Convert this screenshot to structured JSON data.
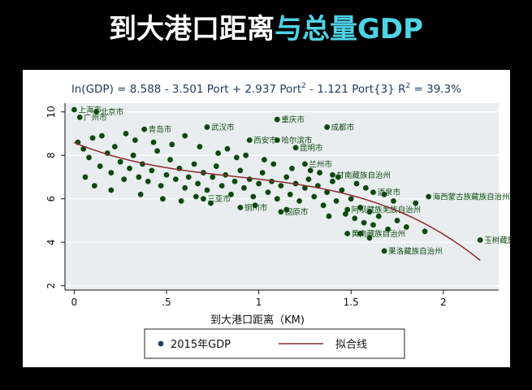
{
  "slide": {
    "title_part1": "到大港口距离",
    "title_part2": "与总量GDP",
    "accent_color": "#4fd3e6"
  },
  "chart_data": {
    "type": "scatter",
    "title_parts": {
      "lead": "ln(GDP) = 8.588 - 3.501 Port + 2.937 Port",
      "sup1": "2",
      "mid": " - 1.121 Port{3}  R",
      "sup2": "2",
      "tail": " = 39.3%"
    },
    "xlabel": "到大港口距离（KM)",
    "ylabel": "",
    "xlim": [
      -0.05,
      2.3
    ],
    "ylim": [
      1.8,
      10.4
    ],
    "x_ticks": [
      0,
      0.5,
      1,
      1.5,
      2
    ],
    "x_tick_labels": [
      "0",
      ".5",
      "1",
      "1.5",
      "2"
    ],
    "y_ticks": [
      2,
      4,
      6,
      8,
      10
    ],
    "y_tick_labels": [
      "2",
      "4",
      "6",
      "8",
      "10"
    ],
    "grid": true,
    "legend_position": "bottom",
    "colors": {
      "plot_bg": "#e9edf0",
      "outer_bg": "#ffffff",
      "marker": "#0c4a0c",
      "label": "#0d4d0d",
      "fit_line": "#8e2a2a",
      "grid": "#ffffff",
      "title": "#1e3a5c",
      "legend_marker": "#1b3f66"
    },
    "series": [
      {
        "name": "2015年GDP",
        "kind": "scatter",
        "points": [
          {
            "x": 0.0,
            "y": 10.1,
            "label": "上海市"
          },
          {
            "x": 0.12,
            "y": 10.0,
            "label": "北京市"
          },
          {
            "x": 0.03,
            "y": 9.75,
            "label": "广州市"
          },
          {
            "x": 1.1,
            "y": 9.65,
            "label": "重庆市"
          },
          {
            "x": 1.37,
            "y": 9.3,
            "label": "成都市"
          },
          {
            "x": 0.72,
            "y": 9.3,
            "label": "武汉市"
          },
          {
            "x": 0.38,
            "y": 9.2,
            "label": "青岛市"
          },
          {
            "x": 0.95,
            "y": 8.7,
            "label": "西安市"
          },
          {
            "x": 1.1,
            "y": 8.7,
            "label": "哈尔滨市"
          },
          {
            "x": 1.2,
            "y": 8.35,
            "label": "昆明市"
          },
          {
            "x": 1.25,
            "y": 7.6,
            "label": "兰州市"
          },
          {
            "x": 1.62,
            "y": 6.3,
            "label": "酒泉市"
          },
          {
            "x": 1.92,
            "y": 6.1,
            "label": "海西蒙古族藏族自治州"
          },
          {
            "x": 2.2,
            "y": 4.1,
            "label": "玉树藏族自治州"
          },
          {
            "x": 1.68,
            "y": 3.6,
            "label": "果洛藏族自治州"
          },
          {
            "x": 1.48,
            "y": 4.4,
            "label": "黄南藏族自治州"
          },
          {
            "x": 1.4,
            "y": 7.1,
            "label": "甘南藏族自治州"
          },
          {
            "x": 1.48,
            "y": 5.5,
            "label": "阿坝藏族羌族自治州"
          },
          {
            "x": 0.7,
            "y": 6.0,
            "label": "三亚市"
          },
          {
            "x": 0.9,
            "y": 5.6,
            "label": "铜川市"
          },
          {
            "x": 1.12,
            "y": 5.4,
            "label": "固原市"
          }
        ],
        "bulk_points": [
          [
            0.02,
            8.6
          ],
          [
            0.05,
            8.3
          ],
          [
            0.08,
            7.9
          ],
          [
            0.1,
            8.8
          ],
          [
            0.14,
            7.5
          ],
          [
            0.18,
            8.1
          ],
          [
            0.2,
            7.2
          ],
          [
            0.22,
            8.4
          ],
          [
            0.25,
            7.7
          ],
          [
            0.27,
            6.9
          ],
          [
            0.3,
            7.4
          ],
          [
            0.32,
            8.0
          ],
          [
            0.35,
            7.0
          ],
          [
            0.37,
            7.6
          ],
          [
            0.4,
            6.8
          ],
          [
            0.42,
            7.3
          ],
          [
            0.45,
            8.2
          ],
          [
            0.47,
            6.6
          ],
          [
            0.5,
            7.1
          ],
          [
            0.52,
            7.8
          ],
          [
            0.55,
            6.9
          ],
          [
            0.57,
            7.4
          ],
          [
            0.6,
            6.5
          ],
          [
            0.62,
            7.0
          ],
          [
            0.65,
            7.6
          ],
          [
            0.67,
            6.7
          ],
          [
            0.7,
            7.2
          ],
          [
            0.72,
            6.4
          ],
          [
            0.75,
            7.0
          ],
          [
            0.77,
            7.5
          ],
          [
            0.8,
            6.6
          ],
          [
            0.82,
            7.1
          ],
          [
            0.85,
            6.2
          ],
          [
            0.87,
            6.8
          ],
          [
            0.9,
            7.3
          ],
          [
            0.92,
            6.5
          ],
          [
            0.95,
            6.9
          ],
          [
            0.97,
            6.1
          ],
          [
            1.0,
            6.7
          ],
          [
            1.02,
            7.2
          ],
          [
            1.05,
            6.3
          ],
          [
            1.07,
            6.8
          ],
          [
            1.1,
            6.0
          ],
          [
            1.12,
            6.6
          ],
          [
            1.15,
            7.0
          ],
          [
            1.17,
            6.2
          ],
          [
            1.2,
            6.7
          ],
          [
            1.22,
            5.9
          ],
          [
            1.25,
            6.5
          ],
          [
            1.27,
            6.9
          ],
          [
            1.3,
            6.1
          ],
          [
            1.32,
            6.6
          ],
          [
            1.35,
            5.7
          ],
          [
            1.37,
            6.3
          ],
          [
            1.4,
            6.8
          ],
          [
            1.42,
            5.9
          ],
          [
            1.45,
            6.4
          ],
          [
            1.47,
            5.3
          ],
          [
            1.5,
            6.0
          ],
          [
            1.52,
            5.1
          ],
          [
            1.55,
            5.6
          ],
          [
            1.57,
            4.9
          ],
          [
            1.6,
            5.4
          ],
          [
            1.62,
            4.8
          ],
          [
            1.65,
            5.2
          ],
          [
            1.7,
            4.6
          ],
          [
            1.75,
            5.0
          ],
          [
            1.8,
            4.7
          ],
          [
            1.85,
            5.8
          ],
          [
            1.9,
            4.5
          ],
          [
            0.15,
            8.9
          ],
          [
            0.28,
            9.0
          ],
          [
            0.33,
            8.7
          ],
          [
            0.43,
            8.6
          ],
          [
            0.53,
            8.5
          ],
          [
            0.6,
            8.9
          ],
          [
            0.68,
            8.4
          ],
          [
            0.78,
            8.1
          ],
          [
            0.83,
            8.3
          ],
          [
            0.88,
            7.9
          ],
          [
            0.93,
            8.0
          ],
          [
            1.03,
            7.8
          ],
          [
            1.08,
            7.6
          ],
          [
            1.18,
            7.4
          ],
          [
            1.28,
            7.3
          ],
          [
            1.33,
            7.2
          ],
          [
            1.43,
            7.0
          ],
          [
            1.53,
            6.7
          ],
          [
            1.58,
            6.5
          ],
          [
            1.68,
            6.2
          ],
          [
            1.73,
            5.9
          ],
          [
            0.06,
            7.0
          ],
          [
            0.11,
            6.6
          ],
          [
            0.2,
            6.4
          ],
          [
            0.36,
            6.2
          ],
          [
            0.48,
            6.0
          ],
          [
            0.58,
            5.9
          ],
          [
            0.66,
            6.1
          ],
          [
            0.74,
            5.8
          ],
          [
            0.98,
            5.7
          ],
          [
            1.15,
            5.5
          ],
          [
            1.38,
            5.2
          ],
          [
            1.55,
            4.4
          ],
          [
            1.6,
            4.2
          ]
        ]
      },
      {
        "name": "拟合线",
        "kind": "line",
        "coefficients": {
          "const": 8.588,
          "x1": -3.501,
          "x2": 2.937,
          "x3": -1.121
        },
        "x_range": [
          0,
          2.2
        ]
      }
    ]
  }
}
